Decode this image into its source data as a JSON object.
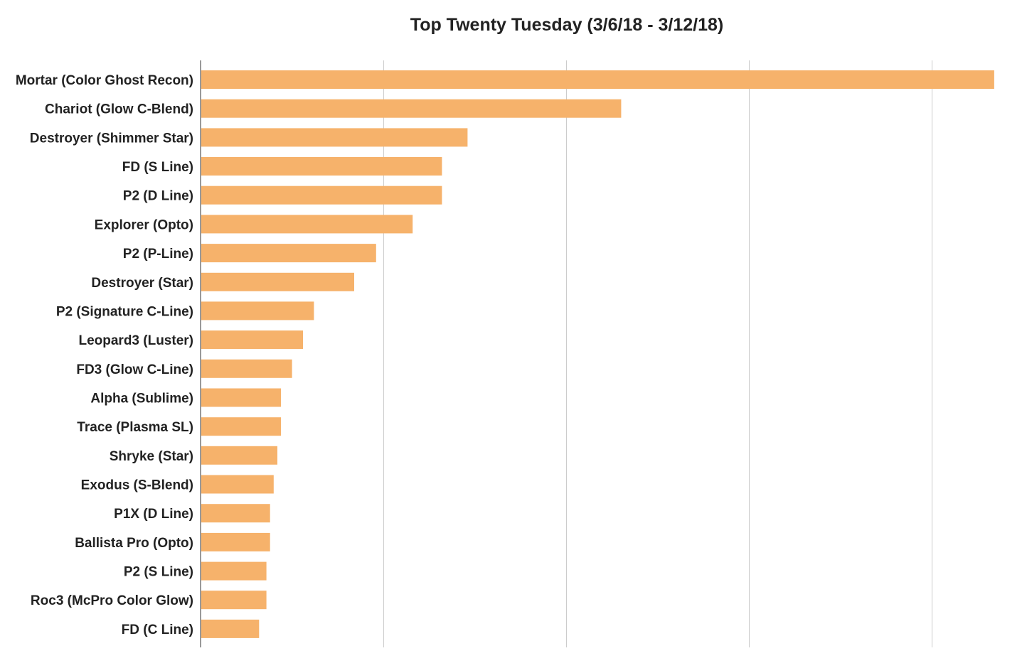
{
  "chart_data": {
    "type": "bar",
    "orientation": "horizontal",
    "title": "Top Twenty Tuesday (3/6/18 - 3/12/18)",
    "xlabel": "",
    "ylabel": "",
    "categories": [
      "Mortar (Color Ghost Recon)",
      "Chariot (Glow C-Blend)",
      "Destroyer (Shimmer Star)",
      "FD (S Line)",
      "P2 (D Line)",
      "Explorer (Opto)",
      "P2 (P-Line)",
      "Destroyer (Star)",
      "P2 (Signature C-Line)",
      "Leopard3 (Luster)",
      "FD3 (Glow C-Line)",
      "Alpha (Sublime)",
      "Trace (Plasma SL)",
      "Shryke (Star)",
      "Exodus (S-Blend)",
      "P1X (D Line)",
      "Ballista Pro (Opto)",
      "P2 (S Line)",
      "Roc3 (McPro Color Glow)",
      "FD (C Line)"
    ],
    "values": [
      217,
      115,
      73,
      66,
      66,
      58,
      48,
      42,
      31,
      28,
      25,
      22,
      22,
      21,
      20,
      19,
      19,
      18,
      18,
      16
    ],
    "xlim": [
      0,
      225
    ],
    "tick_step": 50,
    "grid": true,
    "tick_labels_shown": false,
    "legend": "none",
    "bar_color": "#f6b26b"
  }
}
